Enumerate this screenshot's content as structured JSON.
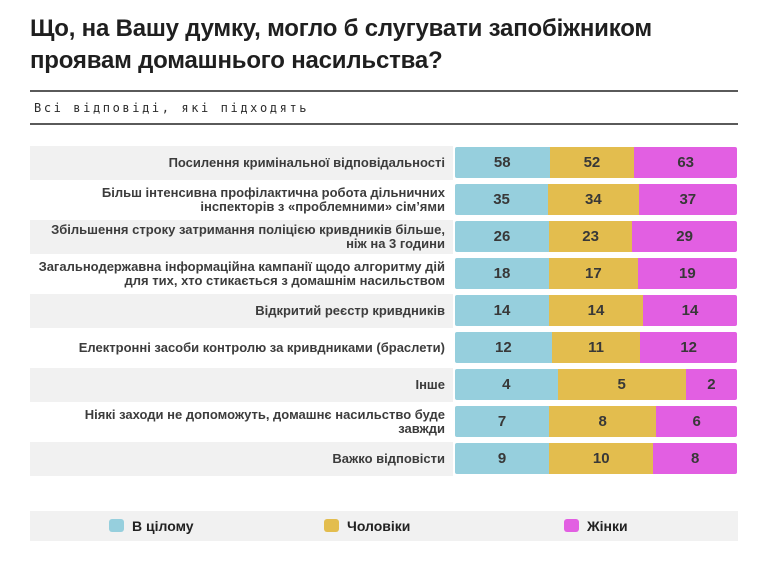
{
  "chart_data": {
    "type": "bar",
    "variant": "horizontal-100percent-stacked",
    "title": "Що, на Вашу думку, могло б слугувати запобіжником проявам домашнього насильства?",
    "subtitle": "Всі відповіді, які підходять",
    "legend_position": "bottom",
    "grid": false,
    "row_background_alt": "#f1f1f1",
    "categories": [
      "Посилення кримінальної відповідальності",
      "Більш інтенсивна профілактична робота дільничних інспекторів з «проблемними» сім’ями",
      "Збільшення строку затримання поліцією кривдників більше, ніж на 3 години",
      "Загальнодержавна інформаційна кампанії щодо алгоритму дій для тих, хто стикається з домашнім насильством",
      "Відкритий реєстр кривдників",
      "Електронні засоби контролю за кривдниками (браслети)",
      "Інше",
      "Ніякі заходи не допоможуть, домашнє насильство буде завжди",
      "Важко відповісти"
    ],
    "series": [
      {
        "key": "overall",
        "name": "В цілому",
        "color": "#96cfdd",
        "values": [
          58,
          35,
          26,
          18,
          14,
          12,
          4,
          7,
          9
        ]
      },
      {
        "key": "men",
        "name": "Чоловіки",
        "color": "#e3bd4e",
        "values": [
          52,
          34,
          23,
          17,
          14,
          11,
          5,
          8,
          10
        ]
      },
      {
        "key": "women",
        "name": "Жінки",
        "color": "#e25fe2",
        "values": [
          63,
          37,
          29,
          19,
          14,
          12,
          2,
          6,
          8
        ]
      }
    ]
  }
}
